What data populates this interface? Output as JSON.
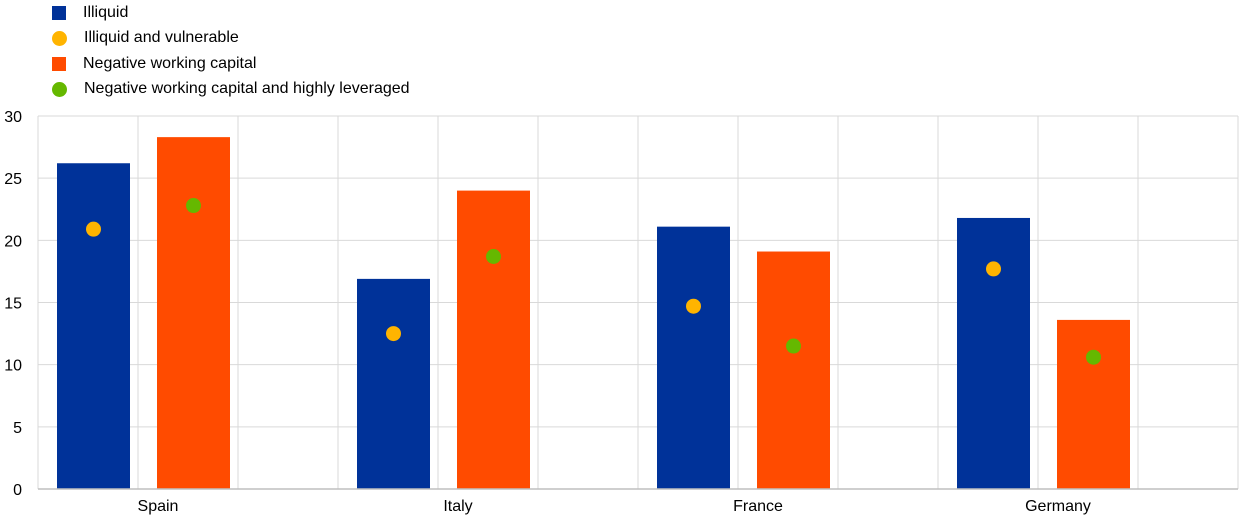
{
  "chart_data": {
    "type": "bar",
    "categories": [
      "Spain",
      "Italy",
      "France",
      "Germany"
    ],
    "series": [
      {
        "name": "Illiquid",
        "kind": "bar",
        "marker": "square",
        "color": "#003299",
        "values": [
          26.2,
          16.9,
          21.1,
          21.8
        ]
      },
      {
        "name": "Illiquid and vulnerable",
        "kind": "dot",
        "marker": "circle",
        "color": "#FFB400",
        "values": [
          20.9,
          12.5,
          14.7,
          17.7
        ]
      },
      {
        "name": "Negative working capital",
        "kind": "bar",
        "marker": "square",
        "color": "#FF4B00",
        "values": [
          28.3,
          24.0,
          19.1,
          13.6
        ]
      },
      {
        "name": "Negative working capital and highly leveraged",
        "kind": "dot",
        "marker": "circle",
        "color": "#65B800",
        "values": [
          22.8,
          18.7,
          11.5,
          10.6
        ]
      }
    ],
    "ylim": [
      0,
      30
    ],
    "yticks": [
      0,
      5,
      10,
      15,
      20,
      25,
      30
    ],
    "grid": true,
    "legend_position": "top-left",
    "title": "",
    "xlabel": "",
    "ylabel": ""
  }
}
